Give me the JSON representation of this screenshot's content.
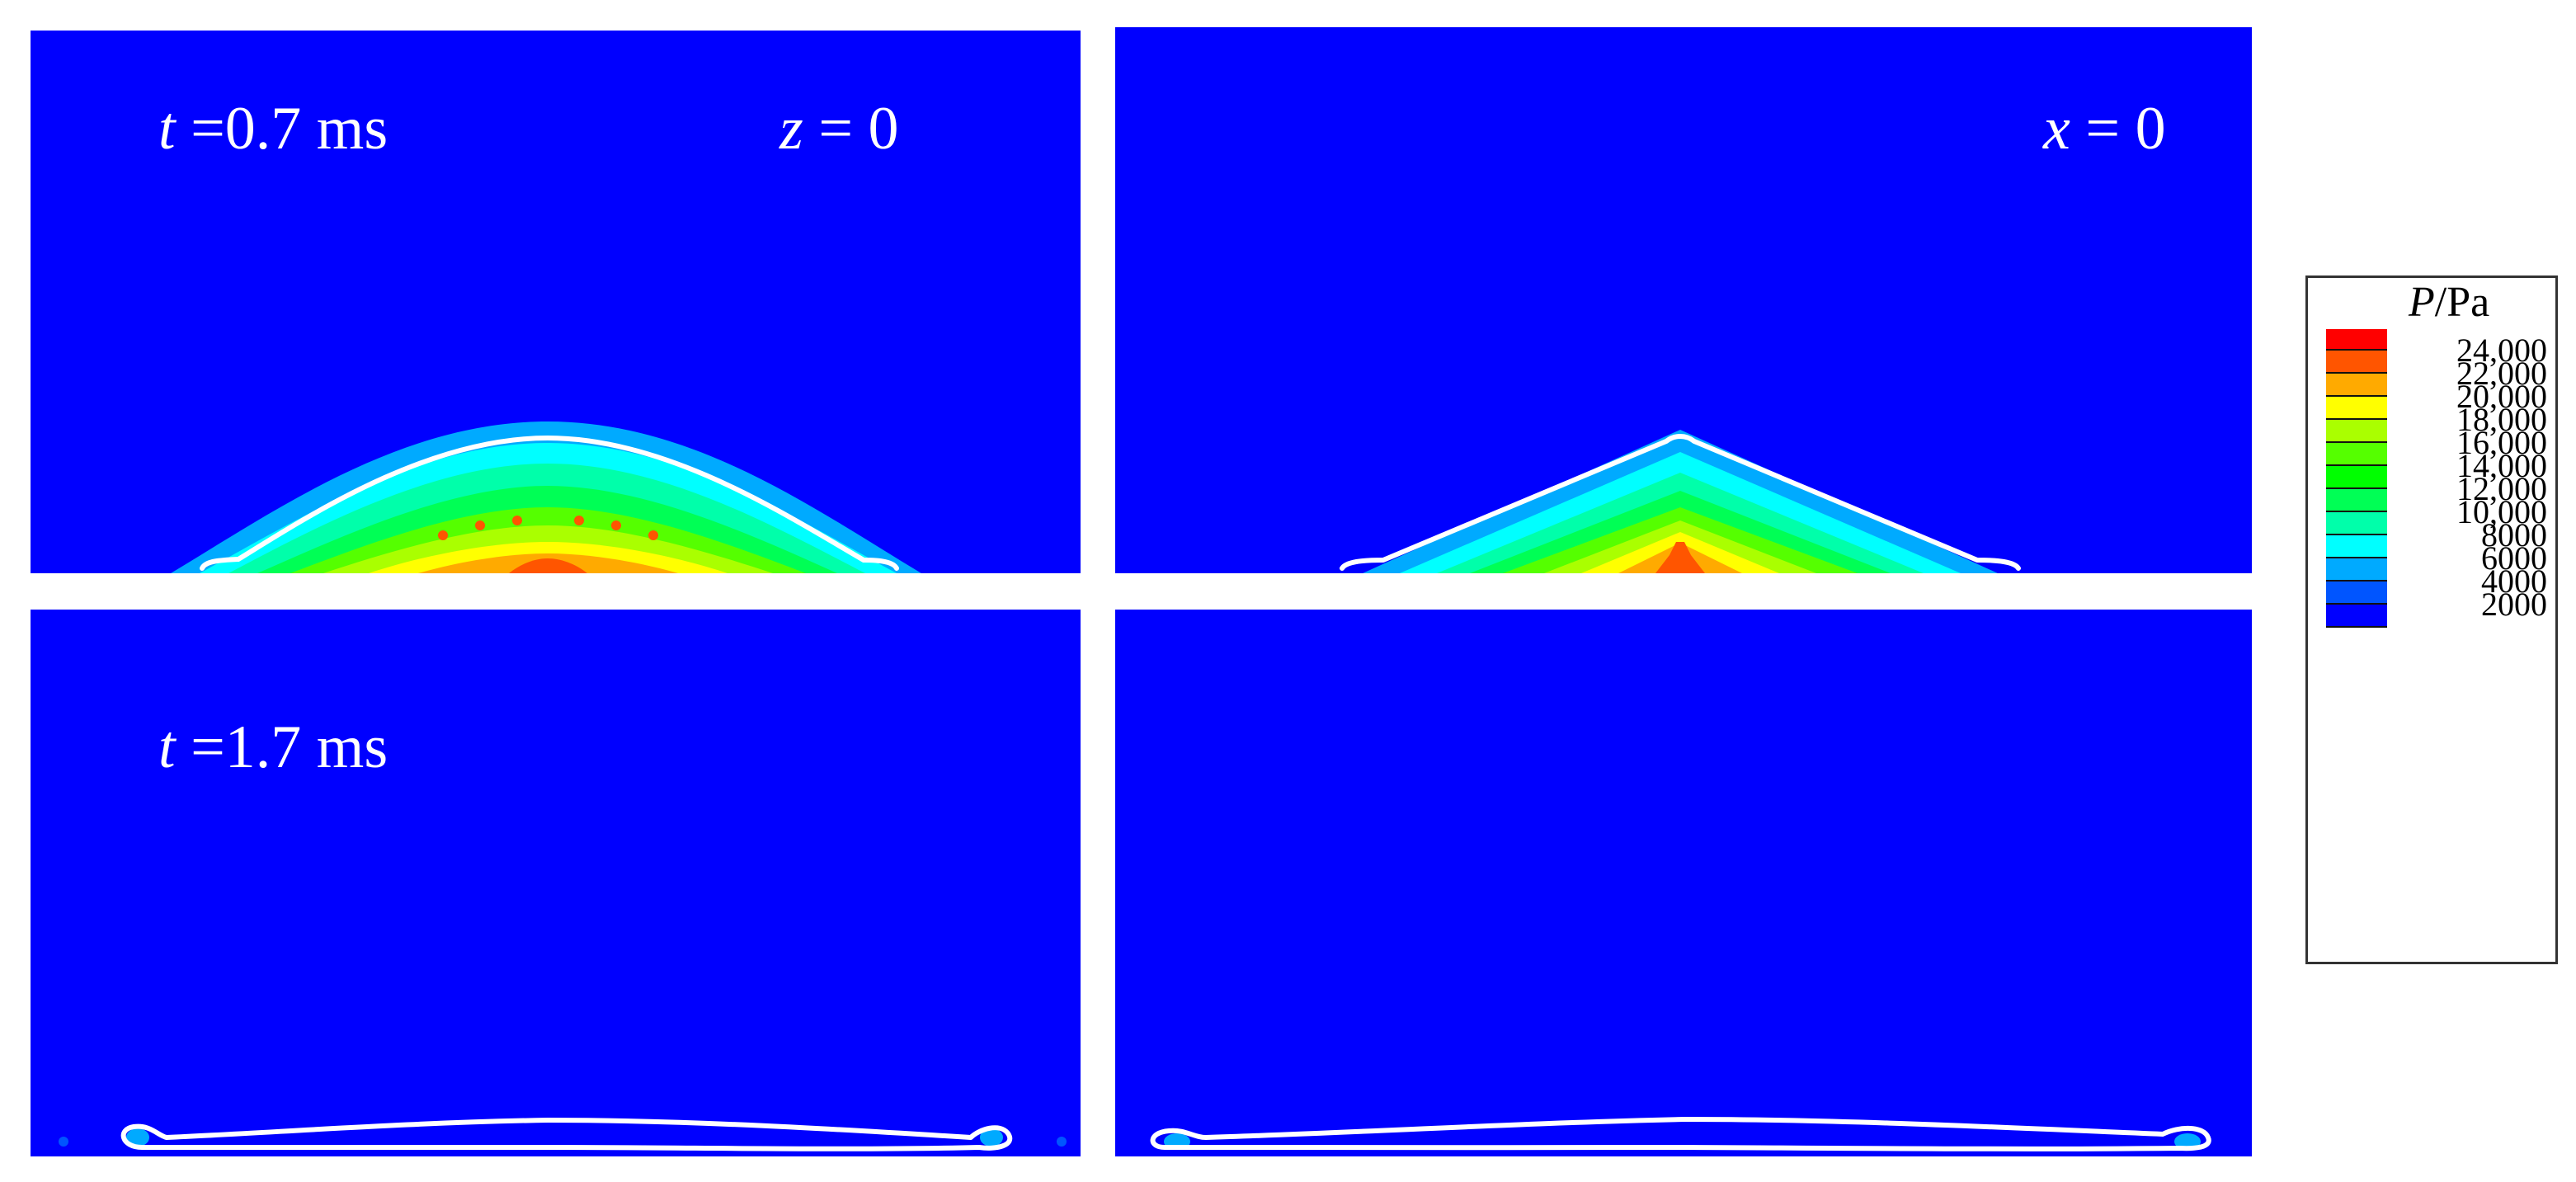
{
  "panels": {
    "top_left": {
      "time_label_var": "t",
      "time_label_value": " =0.7 ms",
      "plane_label_var": "z",
      "plane_label_value": " = 0"
    },
    "top_right": {
      "plane_label_var": "x",
      "plane_label_value": " = 0"
    },
    "bottom_left": {
      "time_label_var": "t",
      "time_label_value": " =1.7 ms"
    },
    "bottom_right": {}
  },
  "legend": {
    "title_var": "P",
    "title_unit": "/Pa",
    "ticks": [
      "24,000",
      "22,000",
      "20,000",
      "18,000",
      "16,000",
      "14,000",
      "12,000",
      "10,000",
      "8000",
      "6000",
      "4000",
      "2000"
    ],
    "colors": [
      "#ff0000",
      "#ff5500",
      "#ffaa00",
      "#ffff00",
      "#aaff00",
      "#55ff00",
      "#00ff00",
      "#00ff55",
      "#00ffaa",
      "#00ffff",
      "#00aaff",
      "#0055ff",
      "#0000ff"
    ]
  },
  "colors": {
    "background_field": "#0000ff",
    "interface_line": "#ffffff"
  }
}
